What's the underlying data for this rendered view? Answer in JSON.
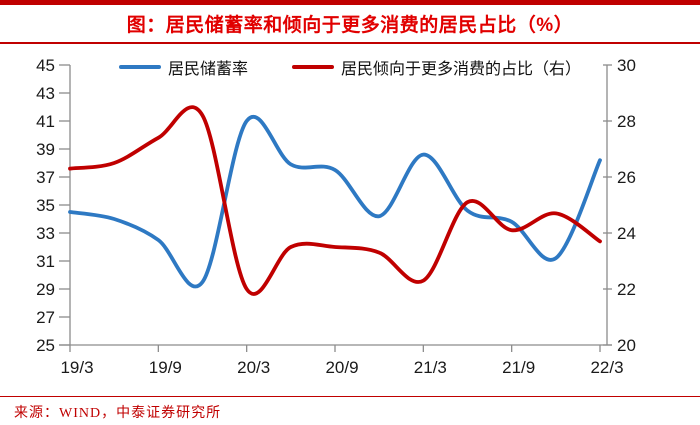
{
  "header": {
    "title": "图：居民储蓄率和倾向于更多消费的居民占比（%）"
  },
  "legend": [
    {
      "label": "居民储蓄率",
      "color": "#2E79C3"
    },
    {
      "label": "居民倾向于更多消费的占比（右）",
      "color": "#C00000"
    }
  ],
  "footer": {
    "source": "来源：WIND，中泰证券研究所"
  },
  "colors": {
    "title_red": "#E10000",
    "accent_red": "#C00000",
    "series_blue": "#2E79C3",
    "series_red": "#C00000",
    "axis_gray": "#8C8C8C",
    "label_black": "#1A1A1A"
  },
  "chart_data": {
    "type": "line",
    "title": "图：居民储蓄率和倾向于更多消费的居民占比（%）",
    "x": [
      "19/3",
      "19/6",
      "19/9",
      "19/12",
      "20/3",
      "20/6",
      "20/9",
      "20/12",
      "21/3",
      "21/6",
      "21/9",
      "21/12",
      "22/3"
    ],
    "x_tick_labels": [
      "19/3",
      "19/9",
      "20/3",
      "20/9",
      "21/3",
      "21/9",
      "22/3"
    ],
    "series": [
      {
        "name": "居民储蓄率",
        "axis": "left",
        "color": "#2E79C3",
        "values": [
          34.5,
          34.0,
          32.5,
          29.5,
          41.0,
          37.9,
          37.5,
          34.2,
          38.6,
          34.6,
          33.8,
          31.2,
          38.2
        ]
      },
      {
        "name": "居民倾向于更多消费的占比（右）",
        "axis": "right",
        "color": "#C00000",
        "values": [
          26.3,
          26.5,
          27.4,
          28.2,
          22.0,
          23.5,
          23.5,
          23.3,
          22.3,
          25.1,
          24.1,
          24.7,
          23.7
        ]
      }
    ],
    "left_axis": {
      "min": 25,
      "max": 45,
      "tick_step": 2,
      "ticks": [
        "45",
        "43",
        "41",
        "39",
        "37",
        "35",
        "33",
        "31",
        "29",
        "27",
        "25"
      ]
    },
    "right_axis": {
      "min": 20,
      "max": 30,
      "tick_step": 2,
      "ticks": [
        "30",
        "28",
        "26",
        "24",
        "22",
        "20"
      ]
    },
    "grid": false,
    "legend_position": "top",
    "line_smoothing": true
  }
}
